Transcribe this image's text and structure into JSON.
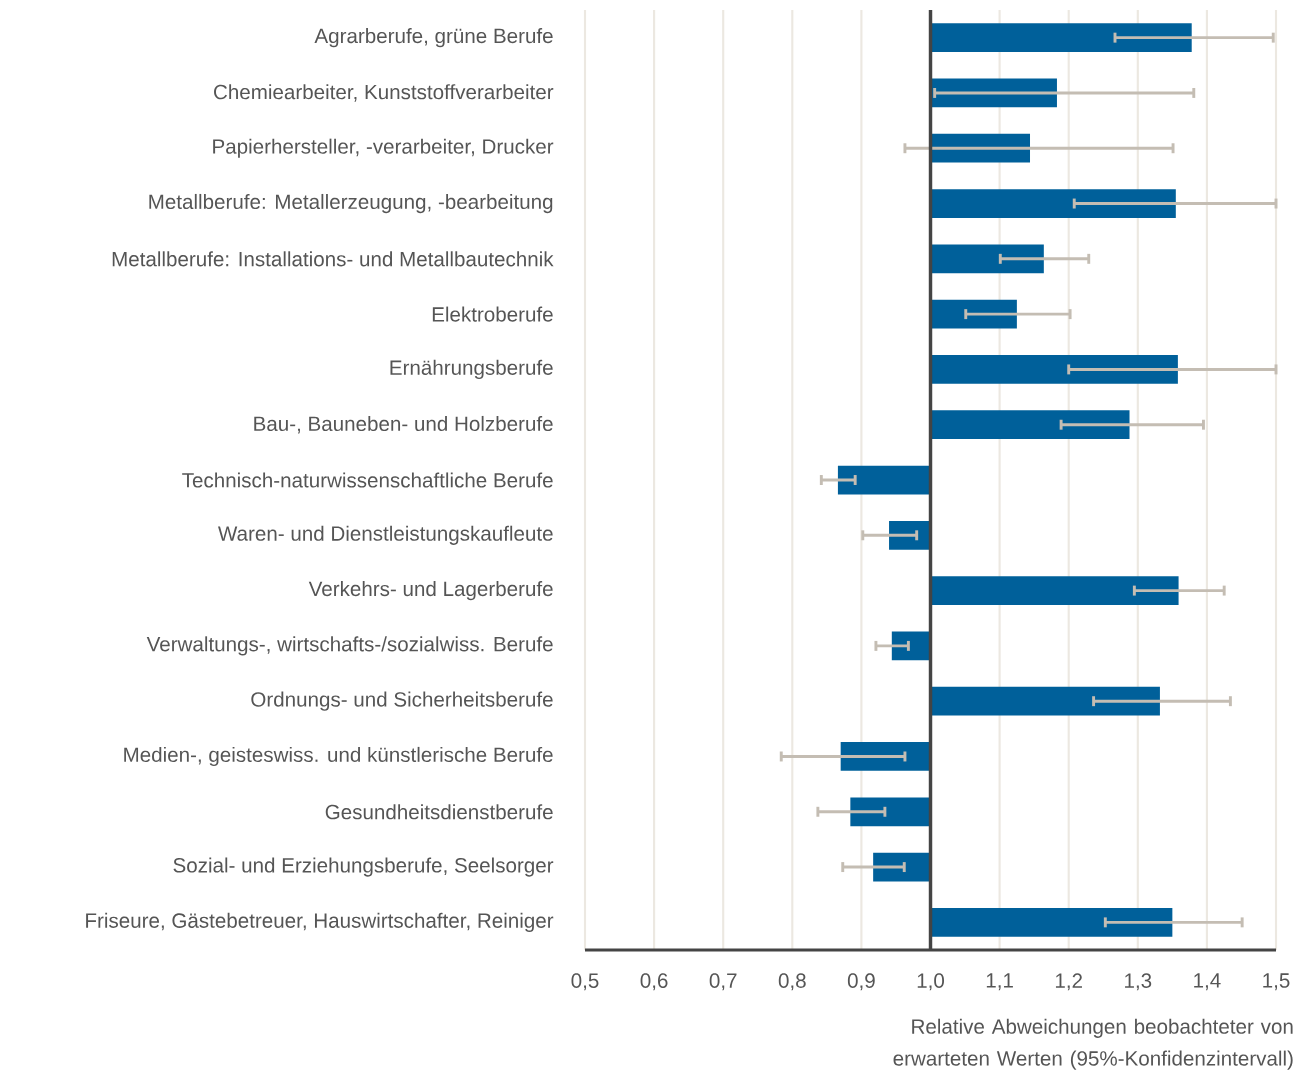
{
  "chart_data": {
    "type": "bar",
    "orientation": "horizontal",
    "xlabel": "Relative Abweichungen beobachteter von erwarteten Werten (95%-Konfidenzintervall)",
    "categories": [
      "Agrarberufe, grüne Berufe",
      "Chemiearbeiter, Kunststoffverarbeiter",
      "Papierhersteller, -verarbeiter, Drucker",
      "Metallberufe: Metallerzeugung, -bearbeitung",
      "Metallberufe: Installations- und Metallbautechnik",
      "Elektroberufe",
      "Ernährungsberufe",
      "Bau-, Bauneben- und Holzberufe",
      "Technisch-naturwissenschaftliche Berufe",
      "Waren- und Dienstleistungskaufleute",
      "Verkehrs- und Lagerberufe",
      "Verwaltungs-, wirtschafts-/sozialwiss. Berufe",
      "Ordnungs- und Sicherheitsberufe",
      "Medien-, geisteswiss. und künstlerische Berufe",
      "Gesundheitsdienstberufe",
      "Sozial- und Erziehungsberufe, Seelsorger",
      "Friseure, Gästebetreuer, Hauswirtschafter, Reiniger"
    ],
    "base": [
      1.0,
      1.0,
      1.0,
      1.0,
      1.0,
      1.0,
      1.0,
      1.0,
      1.0,
      1.0,
      1.0,
      1.0,
      1.0,
      1.0,
      1.0,
      1.0,
      1.0
    ],
    "values": [
      0.378,
      0.183,
      0.144,
      0.355,
      0.164,
      0.125,
      0.358,
      0.288,
      -0.134,
      -0.06,
      0.359,
      -0.056,
      0.332,
      -0.13,
      -0.116,
      -0.083,
      0.35
    ],
    "errors": [
      [
        1.267,
        1.496
      ],
      [
        1.006,
        1.381
      ],
      [
        0.963,
        1.351
      ],
      [
        1.208,
        1.5
      ],
      [
        1.101,
        1.229
      ],
      [
        1.051,
        1.202
      ],
      [
        1.2,
        1.5
      ],
      [
        1.189,
        1.395
      ],
      [
        0.842,
        0.891
      ],
      [
        0.902,
        0.98
      ],
      [
        1.295,
        1.425
      ],
      [
        0.921,
        0.968
      ],
      [
        1.236,
        1.434
      ],
      [
        0.784,
        0.963
      ],
      [
        0.837,
        0.934
      ],
      [
        0.873,
        0.962
      ],
      [
        1.253,
        1.451
      ]
    ],
    "color": "#00609a",
    "xlim": [
      0.5,
      1.5
    ],
    "xticks": [
      {
        "value": 0.5,
        "label": "0,5"
      },
      {
        "value": 0.6,
        "label": "0,6"
      },
      {
        "value": 0.7,
        "label": "0,7"
      },
      {
        "value": 0.8,
        "label": "0,8"
      },
      {
        "value": 0.9,
        "label": "0,9"
      },
      {
        "value": 1.0,
        "label": "1,0"
      },
      {
        "value": 1.1,
        "label": "1,1"
      },
      {
        "value": 1.2,
        "label": "1,2"
      },
      {
        "value": 1.3,
        "label": "1,3"
      },
      {
        "value": 1.4,
        "label": "1,4"
      },
      {
        "value": 1.5,
        "label": "1,5"
      }
    ],
    "ref_lines": [
      {
        "axis": "x",
        "value": 1.0,
        "color": "#444444"
      }
    ],
    "grid": "x"
  }
}
